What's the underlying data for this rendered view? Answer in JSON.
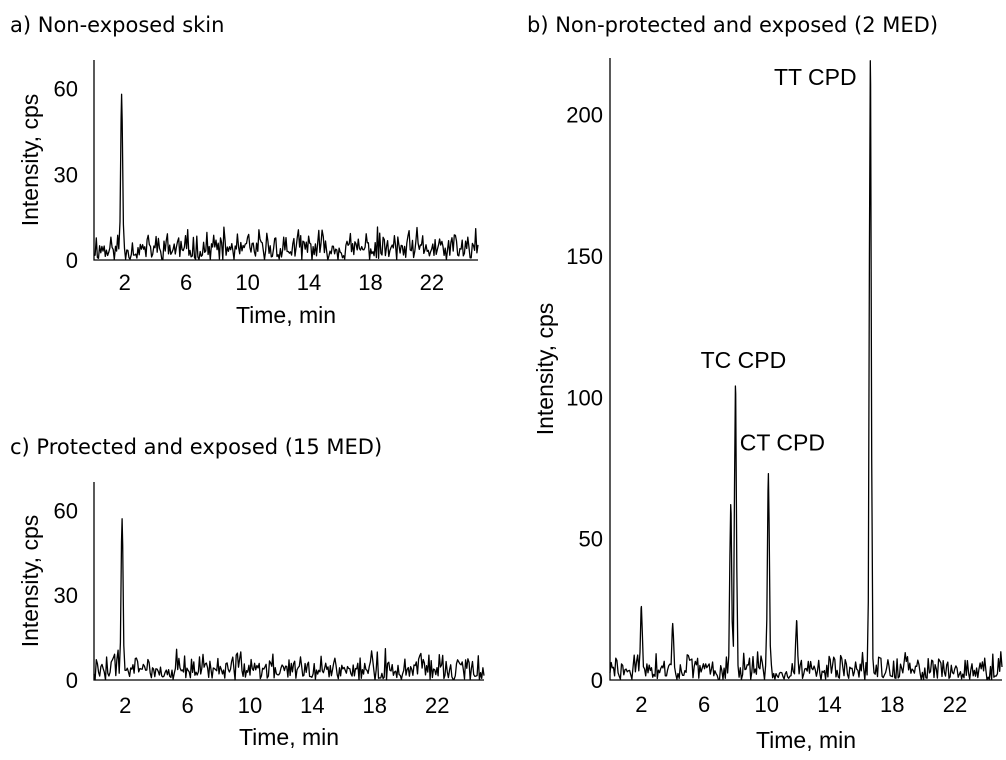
{
  "chart_data": [
    {
      "id": "a",
      "type": "line",
      "title": "a) Non-exposed skin",
      "xlabel": "Time, min",
      "ylabel": "Intensity, cps",
      "xlim": [
        0,
        25
      ],
      "ylim": [
        0,
        70
      ],
      "xticks": [
        2,
        6,
        10,
        14,
        18,
        22
      ],
      "yticks": [
        0,
        30,
        60
      ],
      "grid": false,
      "peaks": [
        {
          "x": 1.8,
          "y": 58
        }
      ],
      "annotations": []
    },
    {
      "id": "b",
      "type": "line",
      "title": "b) Non-protected and exposed (2 MED)",
      "xlabel": "Time, min",
      "ylabel": "Intensity, cps",
      "xlim": [
        0,
        25
      ],
      "ylim": [
        0,
        220
      ],
      "xticks": [
        2,
        6,
        10,
        14,
        18,
        22
      ],
      "yticks": [
        0,
        50,
        100,
        150,
        200
      ],
      "grid": false,
      "peaks": [
        {
          "x": 2.0,
          "y": 26
        },
        {
          "x": 4.0,
          "y": 20
        },
        {
          "x": 7.7,
          "y": 62
        },
        {
          "x": 8.0,
          "y": 104
        },
        {
          "x": 10.1,
          "y": 73
        },
        {
          "x": 11.9,
          "y": 21
        },
        {
          "x": 16.6,
          "y": 219
        }
      ],
      "annotations": [
        {
          "text": "TC CPD",
          "x": 8.0,
          "y": 104
        },
        {
          "text": "CT CPD",
          "x": 10.1,
          "y": 73
        },
        {
          "text": "TT CPD",
          "x": 16.6,
          "y": 219
        }
      ]
    },
    {
      "id": "c",
      "type": "line",
      "title": "c) Protected and exposed (15 MED)",
      "xlabel": "Time, min",
      "ylabel": "Intensity, cps",
      "xlim": [
        0,
        25
      ],
      "ylim": [
        0,
        70
      ],
      "xticks": [
        2,
        6,
        10,
        14,
        18,
        22
      ],
      "yticks": [
        0,
        30,
        60
      ],
      "grid": false,
      "peaks": [
        {
          "x": 1.8,
          "y": 57
        }
      ],
      "annotations": []
    }
  ]
}
